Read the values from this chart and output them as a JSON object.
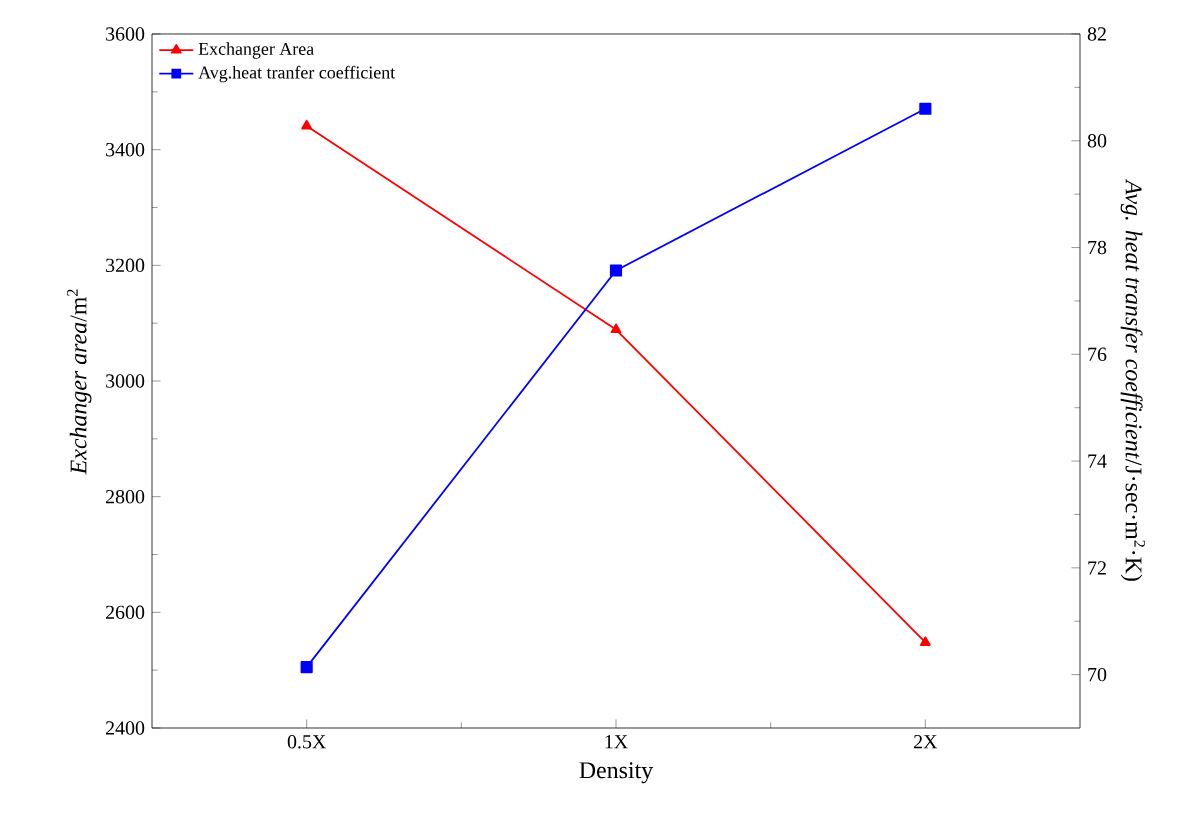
{
  "chart_data": {
    "type": "line",
    "xlabel": "Density",
    "ylabel": "*Exchanger area*/m$^{2}$",
    "y2label": "*Avg. heat transfer coefficient*/J·sec·m$^{2}$·K)",
    "categories": [
      "0.5X",
      "1X",
      "2X"
    ],
    "series": [
      {
        "name": "Exchanger Area",
        "color": "#ff0000",
        "marker": "triangle",
        "values": [
          3441,
          3089,
          2548
        ]
      },
      {
        "name": "Avg.heat tranfer coefficient",
        "color": "#0000ff",
        "marker": "square",
        "axis": "y2",
        "values": [
          70.14,
          77.57,
          80.6
        ]
      }
    ],
    "ylim": [
      2400,
      3600
    ],
    "yticks": [
      2400,
      2600,
      2800,
      3000,
      3200,
      3400,
      3600
    ],
    "y2lim": [
      69,
      82
    ],
    "y2ticks": [
      70,
      72,
      74,
      76,
      78,
      80,
      82
    ],
    "legend": "top left",
    "grid": false,
    "line_style": "solid"
  }
}
